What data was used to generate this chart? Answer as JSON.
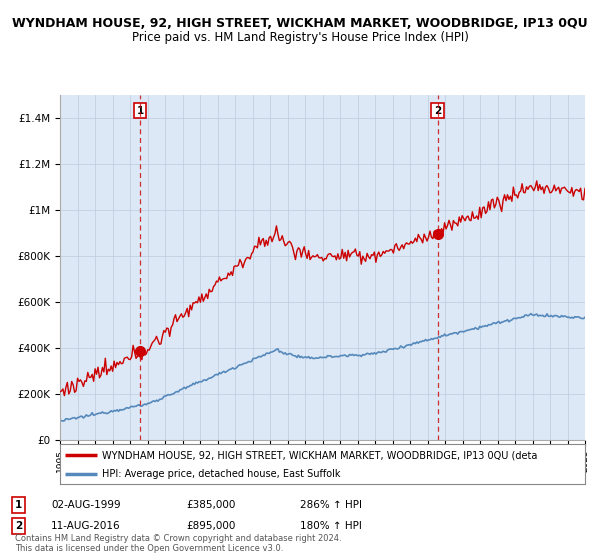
{
  "title": "WYNDHAM HOUSE, 92, HIGH STREET, WICKHAM MARKET, WOODBRIDGE, IP13 0QU",
  "subtitle": "Price paid vs. HM Land Registry's House Price Index (HPI)",
  "legend_line1": "WYNDHAM HOUSE, 92, HIGH STREET, WICKHAM MARKET, WOODBRIDGE, IP13 0QU (deta",
  "legend_line2": "HPI: Average price, detached house, East Suffolk",
  "footer": "Contains HM Land Registry data © Crown copyright and database right 2024.\nThis data is licensed under the Open Government Licence v3.0.",
  "sale1_date": "02-AUG-1999",
  "sale1_price": "£385,000",
  "sale1_hpi": "286% ↑ HPI",
  "sale2_date": "11-AUG-2016",
  "sale2_price": "£895,000",
  "sale2_hpi": "180% ↑ HPI",
  "sale1_year": 1999.58,
  "sale1_value": 385000,
  "sale2_year": 2016.58,
  "sale2_value": 895000,
  "property_line_color": "#cc0000",
  "hpi_line_color": "#5588bb",
  "sale_marker_color": "#cc0000",
  "dashed_line_color": "#cc0000",
  "plot_bg_color": "#dce8f5",
  "ylim_max": 1500000,
  "yticks": [
    0,
    200000,
    400000,
    600000,
    800000,
    1000000,
    1200000,
    1400000
  ],
  "ytick_labels": [
    "£0",
    "£200K",
    "£400K",
    "£600K",
    "£800K",
    "£1M",
    "£1.2M",
    "£1.4M"
  ],
  "background_color": "#ffffff",
  "grid_color": "#bbccdd",
  "title_fontsize": 9.0,
  "subtitle_fontsize": 8.5,
  "axis_fontsize": 7.5
}
